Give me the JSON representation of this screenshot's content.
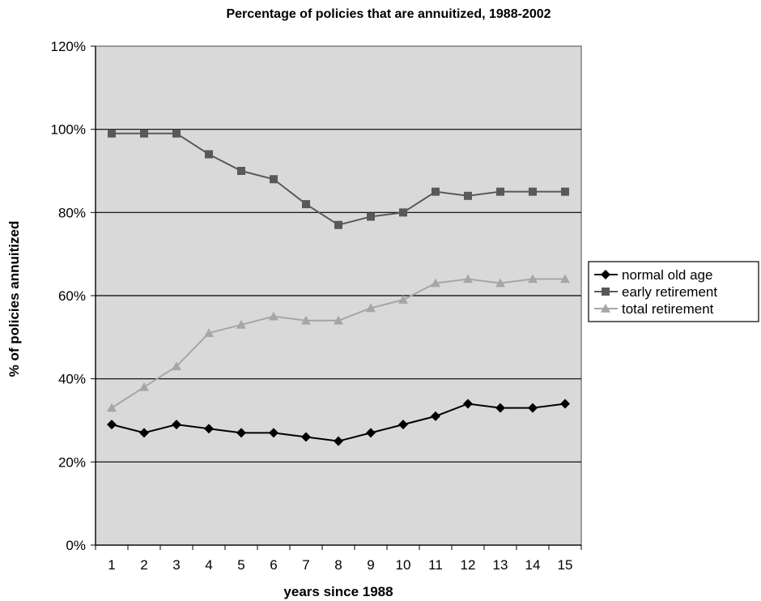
{
  "chart_data": {
    "type": "line",
    "title": "Percentage of policies that are annuitized, 1988-2002",
    "xlabel": "years since 1988",
    "ylabel": "% of policies annuitized",
    "x": [
      1,
      2,
      3,
      4,
      5,
      6,
      7,
      8,
      9,
      10,
      11,
      12,
      13,
      14,
      15
    ],
    "ylim": [
      0,
      1.2
    ],
    "yticks": [
      "0%",
      "20%",
      "40%",
      "60%",
      "80%",
      "100%",
      "120%"
    ],
    "grid": "horizontal",
    "legend_position": "right",
    "plot_background": "#d9d9d9",
    "series": [
      {
        "name": "normal old age",
        "marker": "diamond",
        "color": "#000000",
        "values": [
          0.29,
          0.27,
          0.29,
          0.28,
          0.27,
          0.27,
          0.26,
          0.25,
          0.27,
          0.29,
          0.31,
          0.34,
          0.33,
          0.33,
          0.34
        ]
      },
      {
        "name": "early retirement",
        "marker": "square",
        "color": "#595959",
        "values": [
          0.99,
          0.99,
          0.99,
          0.94,
          0.9,
          0.88,
          0.82,
          0.77,
          0.79,
          0.8,
          0.85,
          0.84,
          0.85,
          0.85,
          0.85
        ]
      },
      {
        "name": "total retirement",
        "marker": "triangle",
        "color": "#a6a6a6",
        "values": [
          0.33,
          0.38,
          0.43,
          0.51,
          0.53,
          0.55,
          0.54,
          0.54,
          0.57,
          0.59,
          0.63,
          0.64,
          0.63,
          0.64,
          0.64
        ]
      }
    ]
  }
}
